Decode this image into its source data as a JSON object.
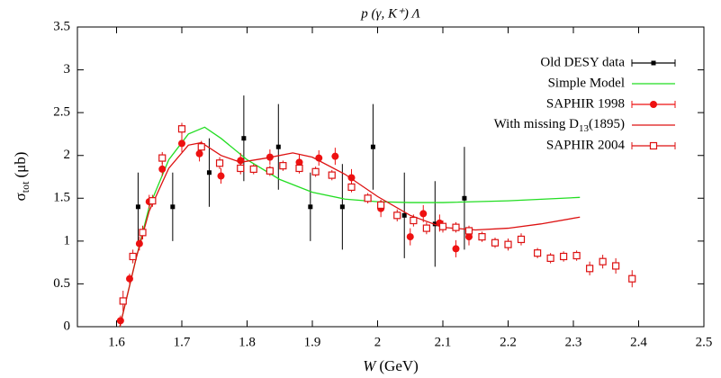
{
  "chart_data": {
    "type": "scatter-lines",
    "title": "p (γ, K⁺) Λ",
    "x_label": {
      "var": "W",
      "unit": "(GeV)"
    },
    "y_label": {
      "sym": "σ",
      "sub": "tot",
      "unit": "(μb)"
    },
    "xlim": [
      1.54,
      2.5
    ],
    "xticks": [
      1.6,
      1.7,
      1.8,
      1.9,
      2,
      2.1,
      2.2,
      2.3,
      2.4,
      2.5
    ],
    "ylim": [
      0,
      3.5
    ],
    "yticks": [
      0,
      0.5,
      1,
      1.5,
      2,
      2.5,
      3,
      3.5
    ],
    "legend": "top-right",
    "series": [
      {
        "name": "Old DESY data",
        "marker": "square",
        "color": "#000000",
        "x": [
          1.633,
          1.686,
          1.742,
          1.795,
          1.848,
          1.897,
          1.946,
          1.993,
          2.041,
          2.088,
          2.133
        ],
        "values": [
          1.4,
          1.4,
          1.8,
          2.2,
          2.1,
          1.4,
          1.4,
          2.1,
          1.3,
          1.2,
          1.5
        ],
        "errors": [
          0.4,
          0.4,
          0.4,
          0.5,
          0.5,
          0.4,
          0.5,
          0.5,
          0.5,
          0.5,
          0.6
        ]
      },
      {
        "name": "Simple Model",
        "marker": "line",
        "color": "#22dd22",
        "x": [
          1.605,
          1.63,
          1.65,
          1.68,
          1.71,
          1.735,
          1.76,
          1.8,
          1.85,
          1.9,
          1.95,
          2.0,
          2.05,
          2.1,
          2.2,
          2.31
        ],
        "values": [
          0,
          0.8,
          1.4,
          1.95,
          2.25,
          2.33,
          2.2,
          1.95,
          1.72,
          1.57,
          1.49,
          1.46,
          1.45,
          1.45,
          1.47,
          1.51
        ]
      },
      {
        "name": "SAPHIR 1998",
        "marker": "circle",
        "color": "#ee1111",
        "x": [
          1.606,
          1.62,
          1.635,
          1.65,
          1.67,
          1.7,
          1.727,
          1.76,
          1.79,
          1.835,
          1.88,
          1.91,
          1.935,
          1.96,
          2.005,
          2.05,
          2.07,
          2.095,
          2.12,
          2.14
        ],
        "values": [
          0.07,
          0.56,
          0.97,
          1.46,
          1.84,
          2.14,
          2.02,
          1.76,
          1.94,
          1.98,
          1.92,
          1.97,
          1.99,
          1.74,
          1.38,
          1.05,
          1.32,
          1.21,
          0.91,
          1.05
        ],
        "errors": [
          0.06,
          0.06,
          0.08,
          0.08,
          0.08,
          0.1,
          0.09,
          0.09,
          0.09,
          0.09,
          0.09,
          0.09,
          0.1,
          0.1,
          0.1,
          0.1,
          0.1,
          0.1,
          0.1,
          0.1
        ]
      },
      {
        "name": "With missing D₁₃(1895)",
        "name_parts": {
          "pre": "With missing D",
          "sub": "13",
          "post": "(1895)"
        },
        "marker": "line",
        "color": "#dd1111",
        "x": [
          1.605,
          1.63,
          1.65,
          1.68,
          1.71,
          1.73,
          1.76,
          1.79,
          1.83,
          1.87,
          1.9,
          1.95,
          2.0,
          2.05,
          2.1,
          2.15,
          2.2,
          2.25,
          2.31
        ],
        "values": [
          0,
          0.8,
          1.35,
          1.85,
          2.12,
          2.15,
          2.0,
          1.92,
          1.97,
          2.03,
          1.98,
          1.78,
          1.52,
          1.3,
          1.16,
          1.13,
          1.15,
          1.2,
          1.28
        ]
      },
      {
        "name": "SAPHIR 2004",
        "marker": "open-square",
        "color": "#dd1111",
        "x": [
          1.61,
          1.625,
          1.64,
          1.655,
          1.67,
          1.7,
          1.73,
          1.758,
          1.79,
          1.81,
          1.835,
          1.855,
          1.88,
          1.905,
          1.93,
          1.96,
          1.985,
          2.005,
          2.03,
          2.055,
          2.075,
          2.1,
          2.12,
          2.14,
          2.16,
          2.18,
          2.2,
          2.22,
          2.245,
          2.265,
          2.285,
          2.305,
          2.325,
          2.345,
          2.365,
          2.39
        ],
        "values": [
          0.3,
          0.82,
          1.1,
          1.47,
          1.97,
          2.31,
          2.1,
          1.91,
          1.85,
          1.84,
          1.82,
          1.88,
          1.85,
          1.81,
          1.77,
          1.63,
          1.5,
          1.42,
          1.3,
          1.24,
          1.15,
          1.17,
          1.16,
          1.12,
          1.05,
          0.98,
          0.96,
          1.02,
          0.86,
          0.8,
          0.82,
          0.83,
          0.68,
          0.76,
          0.71,
          0.56
        ],
        "errors": [
          0.12,
          0.08,
          0.08,
          0.07,
          0.07,
          0.07,
          0.07,
          0.07,
          0.07,
          0.06,
          0.06,
          0.06,
          0.06,
          0.06,
          0.06,
          0.06,
          0.06,
          0.06,
          0.07,
          0.07,
          0.07,
          0.07,
          0.06,
          0.06,
          0.06,
          0.06,
          0.07,
          0.07,
          0.06,
          0.06,
          0.06,
          0.06,
          0.08,
          0.08,
          0.09,
          0.1
        ]
      }
    ]
  }
}
